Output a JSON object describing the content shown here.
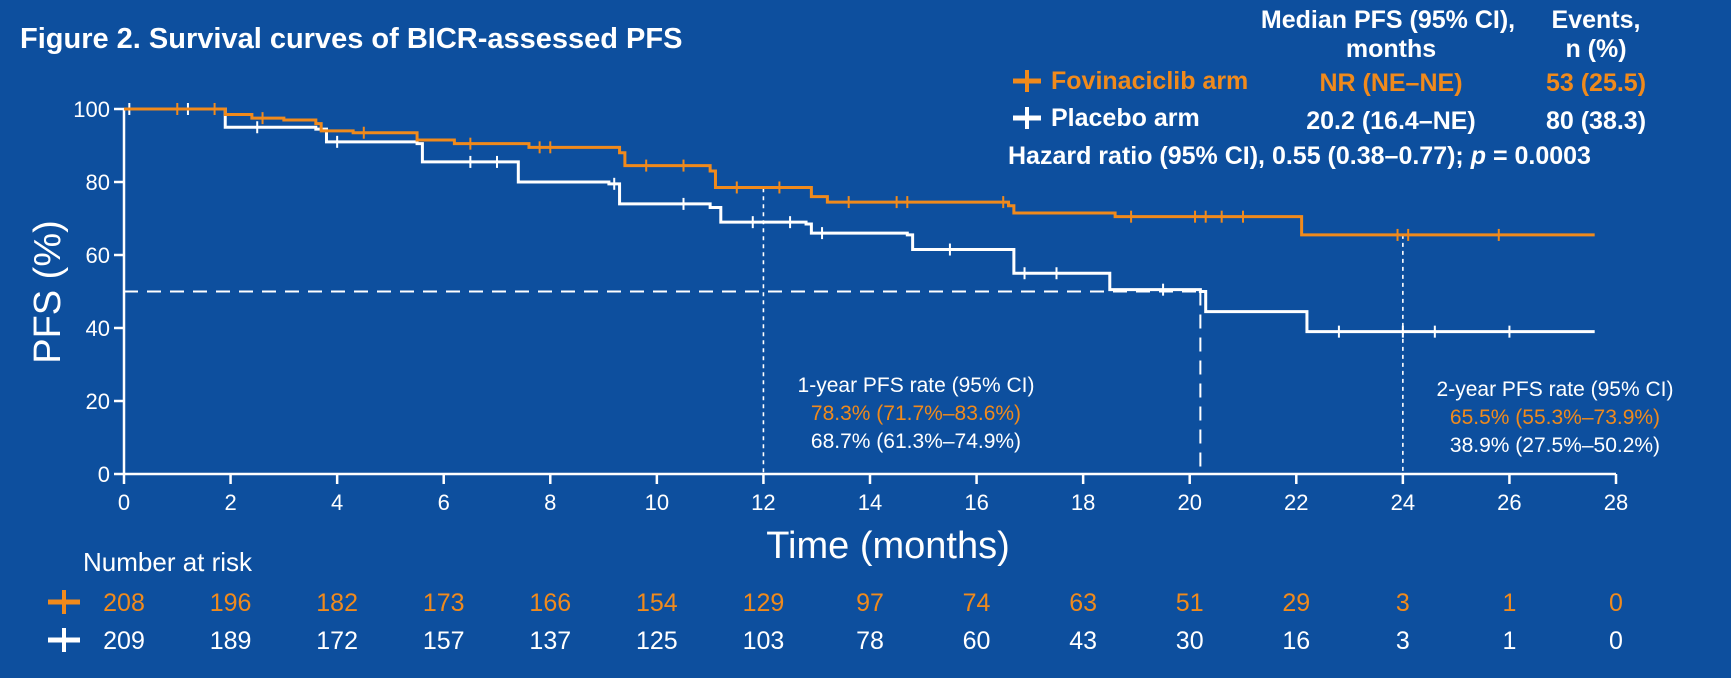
{
  "colors": {
    "background": "#0d4f9e",
    "fovinaciclib": "#f08a1c",
    "placebo": "#ffffff"
  },
  "chart_data": {
    "type": "line",
    "subtype": "kaplan-meier",
    "title": "Figure 2. Survival curves of BICR-assessed PFS",
    "xlabel": "Time (months)",
    "ylabel": "PFS (%)",
    "xlim": [
      0,
      28
    ],
    "ylim": [
      0,
      100
    ],
    "xticks": [
      0,
      2,
      4,
      6,
      8,
      10,
      12,
      14,
      16,
      18,
      20,
      22,
      24,
      26,
      28
    ],
    "yticks": [
      0,
      20,
      40,
      60,
      80,
      100
    ],
    "grid": false,
    "legend_position": "top-right",
    "legend_headers": {
      "median": "Median PFS (95% CI),",
      "median_line2": "months",
      "events": "Events,",
      "events_line2": "n (%)"
    },
    "series": [
      {
        "name": "Fovinaciclib arm",
        "median": "NR (NE–NE)",
        "events": "53 (25.5)",
        "x": [
          0,
          1.8,
          1.9,
          2.4,
          3.0,
          3.6,
          3.7,
          4.3,
          5.4,
          5.5,
          6.2,
          7.6,
          9.3,
          9.4,
          11.0,
          11.1,
          12.8,
          12.9,
          13.2,
          16.6,
          16.7,
          18.5,
          18.6,
          22.0,
          22.1,
          27.6
        ],
        "y": [
          100,
          100,
          98.5,
          97.5,
          97,
          96,
          94,
          93.5,
          93.5,
          91.5,
          90.5,
          89.5,
          88,
          84.5,
          83,
          78.5,
          78.5,
          76,
          74.5,
          73.5,
          71.5,
          71.5,
          70.5,
          70.5,
          65.5,
          65.5
        ],
        "censor_x": [
          1.0,
          1.7,
          2.6,
          4.5,
          6.5,
          7.8,
          8.0,
          9.8,
          10.5,
          11.5,
          12.3,
          13.6,
          14.5,
          14.7,
          16.5,
          18.9,
          20.1,
          20.3,
          20.6,
          21.0,
          23.9,
          24.1,
          25.8
        ]
      },
      {
        "name": "Placebo arm",
        "median": "20.2 (16.4–NE)",
        "events": "80 (38.3)",
        "x": [
          0,
          1.8,
          1.9,
          3.6,
          3.8,
          5.5,
          5.6,
          7.3,
          7.4,
          9.1,
          9.3,
          11.0,
          11.2,
          12.8,
          12.9,
          14.7,
          14.8,
          16.5,
          16.7,
          18.4,
          18.5,
          20.2,
          20.3,
          22.0,
          22.2,
          27.6
        ],
        "y": [
          100,
          100,
          95,
          94.5,
          91,
          90.5,
          85.5,
          85.5,
          80,
          79.5,
          74,
          73,
          69,
          68.5,
          66,
          65.5,
          61.5,
          61.5,
          55,
          55,
          50.5,
          50,
          44.5,
          44.5,
          39,
          39
        ],
        "censor_x": [
          0.1,
          1.2,
          2.5,
          4.0,
          6.5,
          7.0,
          9.2,
          10.5,
          11.8,
          12.5,
          13.1,
          15.5,
          16.9,
          17.5,
          19.5,
          22.8,
          24.0,
          24.6,
          26.0
        ]
      }
    ],
    "hazard_ratio": {
      "label": "Hazard ratio (95% CI), 0.55 (0.38–0.77);",
      "p_symbol": "p",
      "p_value": "= 0.0003"
    },
    "reference_lines": {
      "median_y": 50,
      "median_x_placebo": 20.2,
      "one_year_x": 12,
      "two_year_x": 24
    },
    "annotations": {
      "one_year": {
        "title": "1-year PFS rate (95% CI)",
        "fovinaciclib": "78.3% (71.7%–83.6%)",
        "placebo": "68.7% (61.3%–74.9%)"
      },
      "two_year": {
        "title": "2-year PFS rate (95% CI)",
        "fovinaciclib": "65.5% (55.3%–73.9%)",
        "placebo": "38.9% (27.5%–50.2%)"
      }
    },
    "number_at_risk": {
      "title": "Number at risk",
      "fovinaciclib": [
        "208",
        "196",
        "182",
        "173",
        "166",
        "154",
        "129",
        "97",
        "74",
        "63",
        "51",
        "29",
        "3",
        "1",
        "0"
      ],
      "placebo": [
        "209",
        "189",
        "172",
        "157",
        "137",
        "125",
        "103",
        "78",
        "60",
        "43",
        "30",
        "16",
        "3",
        "1",
        "0"
      ]
    }
  }
}
